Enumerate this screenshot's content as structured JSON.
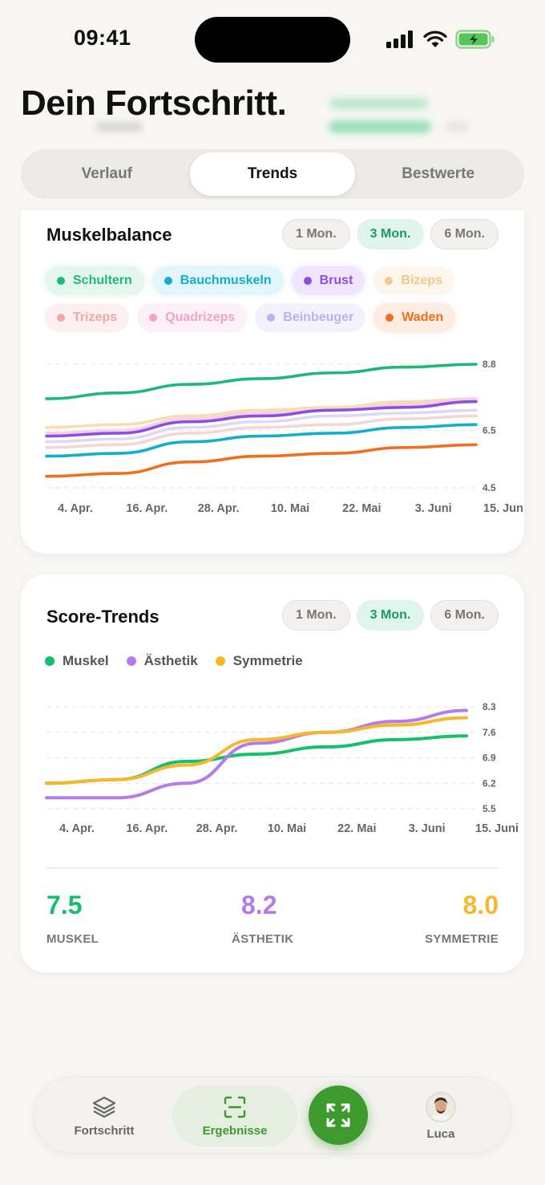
{
  "status": {
    "time": "09:41"
  },
  "page_title": "Dein Fortschritt.",
  "tabs": [
    {
      "label": "Verlauf",
      "active": false
    },
    {
      "label": "Trends",
      "active": true
    },
    {
      "label": "Bestwerte",
      "active": false
    }
  ],
  "balance_card": {
    "title": "Muskelbalance",
    "ranges": [
      "1 Mon.",
      "3 Mon.",
      "6 Mon."
    ],
    "active_range": "3 Mon.",
    "chips": [
      {
        "label": "Schultern",
        "color": "#1db97a",
        "bg": "#e4f6ee",
        "faded": false
      },
      {
        "label": "Bauchmuskeln",
        "color": "#12aecb",
        "bg": "#e1f5fa",
        "faded": false
      },
      {
        "label": "Brust",
        "color": "#8a4ee2",
        "bg": "#efe6fb",
        "faded": false
      },
      {
        "label": "Bizeps",
        "color": "#f2c98a",
        "bg": "#fdf6ec",
        "faded": true
      },
      {
        "label": "Trizeps",
        "color": "#f2a6a6",
        "bg": "#fdf0f0",
        "faded": true
      },
      {
        "label": "Quadrizeps",
        "color": "#f1a3c7",
        "bg": "#fdf0f6",
        "faded": true
      },
      {
        "label": "Beinbeuger",
        "color": "#b9b3ee",
        "bg": "#f3f2fc",
        "faded": true
      },
      {
        "label": "Waden",
        "color": "#ef6f1f",
        "bg": "#fdece2",
        "faded": false
      }
    ]
  },
  "score_card": {
    "title": "Score-Trends",
    "ranges": [
      "1 Mon.",
      "3 Mon.",
      "6 Mon."
    ],
    "active_range": "3 Mon.",
    "legend": [
      {
        "label": "Muskel",
        "color": "#14c06e"
      },
      {
        "label": "Ästhetik",
        "color": "#b57be9"
      },
      {
        "label": "Symmetrie",
        "color": "#f5b82a"
      }
    ],
    "scores": [
      {
        "value": "7.5",
        "label": "MUSKEL",
        "color": "#14c06e"
      },
      {
        "value": "8.2",
        "label": "ÄSTHETIK",
        "color": "#b57be9"
      },
      {
        "value": "8.0",
        "label": "SYMMETRIE",
        "color": "#f5b82a"
      }
    ]
  },
  "chart_data": [
    {
      "type": "line",
      "x": [
        "4. Apr.",
        "16. Apr.",
        "28. Apr.",
        "10. Mai",
        "22. Mai",
        "3. Juni",
        "15. Juni"
      ],
      "y_ticks": [
        "8.8",
        "6.5",
        "4.5"
      ],
      "ylim": [
        4.5,
        8.8
      ],
      "series": [
        {
          "name": "Schultern",
          "color": "#1db97a",
          "values": [
            7.6,
            7.8,
            8.1,
            8.3,
            8.5,
            8.7,
            8.8
          ]
        },
        {
          "name": "Bizeps",
          "color": "#f8dcb2",
          "values": [
            6.6,
            6.7,
            7.0,
            7.2,
            7.3,
            7.5,
            7.6
          ]
        },
        {
          "name": "Quadrizeps",
          "color": "#f6d0e2",
          "values": [
            6.4,
            6.5,
            6.9,
            7.1,
            7.2,
            7.4,
            7.6
          ]
        },
        {
          "name": "Brust",
          "color": "#8a4ee2",
          "values": [
            6.3,
            6.4,
            6.8,
            7.0,
            7.2,
            7.3,
            7.5
          ]
        },
        {
          "name": "Beinbeuger",
          "color": "#dcd9f5",
          "values": [
            6.1,
            6.2,
            6.6,
            6.8,
            7.0,
            7.1,
            7.2
          ]
        },
        {
          "name": "Trizeps",
          "color": "#f7d5d5",
          "values": [
            5.9,
            6.0,
            6.4,
            6.6,
            6.7,
            6.9,
            7.0
          ]
        },
        {
          "name": "Bauchmuskeln",
          "color": "#12aecb",
          "values": [
            5.6,
            5.7,
            6.1,
            6.3,
            6.4,
            6.6,
            6.7
          ]
        },
        {
          "name": "Waden",
          "color": "#ef6f1f",
          "values": [
            4.9,
            5.0,
            5.4,
            5.6,
            5.7,
            5.9,
            6.0
          ]
        }
      ]
    },
    {
      "type": "line",
      "x": [
        "4. Apr.",
        "16. Apr.",
        "28. Apr.",
        "10. Mai",
        "22. Mai",
        "3. Juni",
        "15. Juni"
      ],
      "y_ticks": [
        "8.3",
        "7.6",
        "6.9",
        "6.2",
        "5.5"
      ],
      "ylim": [
        5.5,
        8.3
      ],
      "series": [
        {
          "name": "Muskel",
          "color": "#14c06e",
          "values": [
            6.2,
            6.3,
            6.8,
            7.0,
            7.2,
            7.4,
            7.5
          ]
        },
        {
          "name": "Ästhetik",
          "color": "#b57be9",
          "values": [
            5.8,
            5.8,
            6.2,
            7.3,
            7.6,
            7.9,
            8.2
          ]
        },
        {
          "name": "Symmetrie",
          "color": "#f5b82a",
          "values": [
            6.2,
            6.3,
            6.7,
            7.4,
            7.6,
            7.8,
            8.0
          ]
        }
      ]
    }
  ],
  "nav": {
    "items": [
      {
        "label": "Fortschritt",
        "icon": "layers-icon"
      },
      {
        "label": "Ergebnisse",
        "icon": "scan-frame-icon",
        "active": true
      },
      {
        "label": "scan",
        "icon": "expand-icon"
      },
      {
        "label": "Luca",
        "icon": "avatar"
      }
    ]
  }
}
